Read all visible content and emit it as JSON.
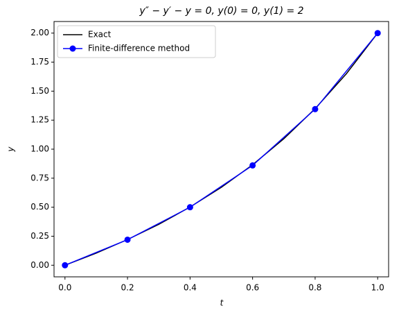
{
  "chart_data": {
    "type": "line",
    "title": "y″ − y′ − y = 0, y(0) = 0, y(1) = 2",
    "x_label": "t",
    "y_label": "y",
    "series": [
      {
        "name": "Exact",
        "color": "#000000",
        "marker": false,
        "x": [
          0,
          0.1,
          0.2,
          0.3,
          0.4,
          0.5,
          0.6,
          0.7,
          0.8,
          0.9,
          1.0
        ],
        "values": [
          0,
          0.1046,
          0.2213,
          0.3525,
          0.5014,
          0.6711,
          0.8658,
          1.09,
          1.3493,
          1.6501,
          2.0
        ]
      },
      {
        "name": "Finite-difference method",
        "color": "#0000ff",
        "marker": true,
        "x": [
          0,
          0.2,
          0.4,
          0.6,
          0.8,
          1.0
        ],
        "values": [
          0,
          0.22,
          0.5,
          0.86,
          1.345,
          2.0
        ]
      }
    ],
    "xlim": [
      -0.035,
      1.035
    ],
    "ylim": [
      -0.1,
      2.1
    ],
    "xticks": [
      {
        "value": 0,
        "label": "0.0"
      },
      0.2,
      0.4,
      0.6,
      0.8,
      {
        "value": 1,
        "label": "1.0"
      }
    ],
    "yticks": [
      {
        "value": 0,
        "label": "0.00"
      },
      0.25,
      {
        "value": 0.5,
        "label": "0.50"
      },
      0.75,
      {
        "value": 1,
        "label": "1.00"
      },
      1.25,
      {
        "value": 1.5,
        "label": "1.50"
      },
      1.75,
      {
        "value": 2,
        "label": "2.00"
      }
    ],
    "grid": false,
    "legend": "upper-left"
  }
}
